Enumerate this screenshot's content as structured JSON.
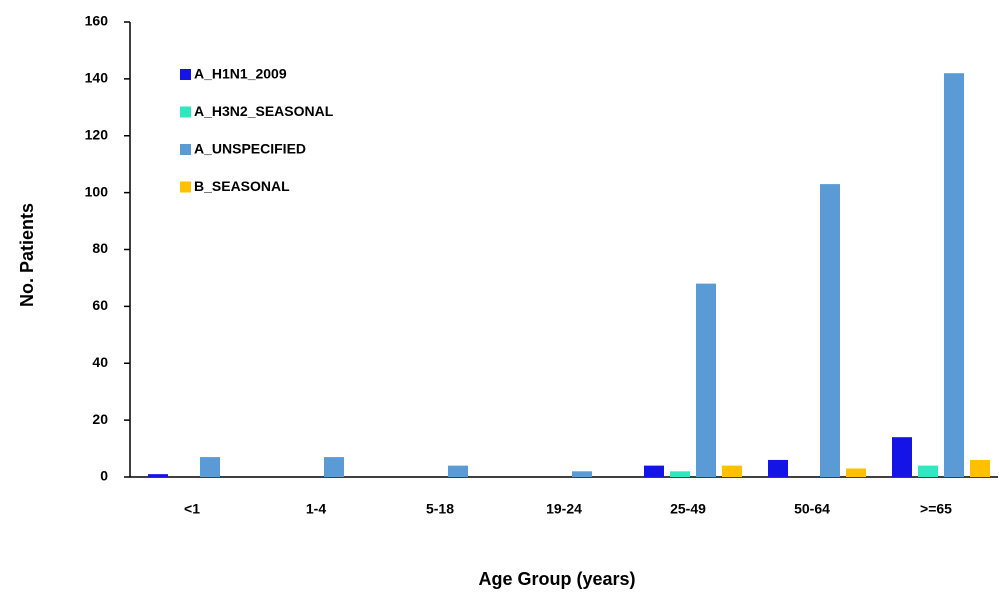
{
  "chart_data": {
    "type": "bar",
    "x_label": "Age Group (years)",
    "y_label": "No. Patients",
    "categories": [
      "<1",
      "1-4",
      "5-18",
      "19-24",
      "25-49",
      "50-64",
      ">=65"
    ],
    "series": [
      {
        "name": "A_H1N1_2009",
        "color": "#1414e6",
        "values": [
          1,
          0,
          0,
          0,
          4,
          6,
          14
        ]
      },
      {
        "name": "A_H3N2_SEASONAL",
        "color": "#2ee8c0",
        "values": [
          0,
          0,
          0,
          0,
          2,
          0,
          4
        ]
      },
      {
        "name": "A_UNSPECIFIED",
        "color": "#5b9bd5",
        "values": [
          7,
          7,
          4,
          2,
          68,
          103,
          142
        ]
      },
      {
        "name": "B_SEASONAL",
        "color": "#ffc000",
        "values": [
          0,
          0,
          0,
          0,
          4,
          3,
          6
        ]
      }
    ],
    "ylim": [
      0,
      160
    ],
    "yticks": [
      0,
      20,
      40,
      60,
      80,
      100,
      120,
      140,
      160
    ],
    "grid": false,
    "legend": "upper left"
  }
}
